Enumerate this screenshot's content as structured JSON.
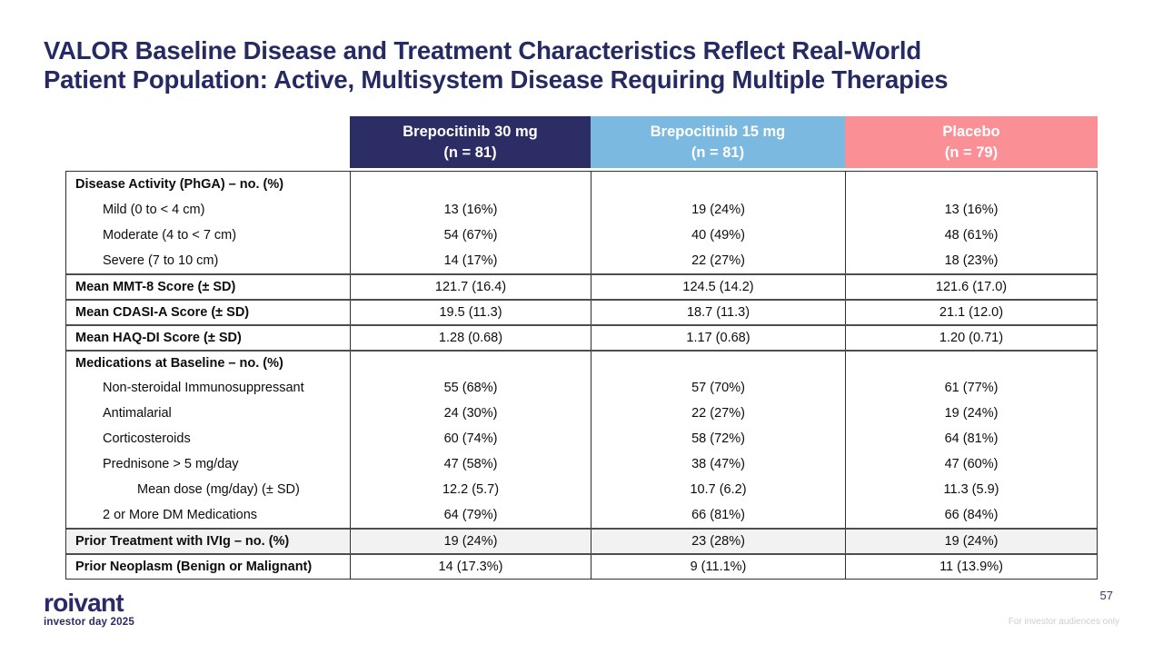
{
  "slide": {
    "title_line1": "VALOR Baseline Disease and Treatment Characteristics Reflect Real-World",
    "title_line2": "Patient Population: Active, Multisystem Disease Requiring Multiple Therapies",
    "title_color": "#252a63",
    "page_number": "57",
    "footer_note": "For investor audiences only",
    "logo": {
      "brand": "roivant",
      "tagline": "investor day 2025"
    }
  },
  "table": {
    "columns": [
      {
        "name_line1": "Brepocitinib 30 mg",
        "name_line2": "(n = 81)",
        "color": "#2d2d66"
      },
      {
        "name_line1": "Brepocitinib 15 mg",
        "name_line2": "(n = 81)",
        "color": "#7cb9e0"
      },
      {
        "name_line1": "Placebo",
        "name_line2": "(n = 79)",
        "color": "#fb8f96"
      }
    ],
    "rows": [
      {
        "label": "Disease Activity (PhGA) – no. (%)",
        "values": [
          "",
          "",
          ""
        ]
      },
      {
        "label": "Mild (0 to < 4 cm)",
        "values": [
          "13 (16%)",
          "19 (24%)",
          "13 (16%)"
        ]
      },
      {
        "label": "Moderate (4 to < 7 cm)",
        "values": [
          "54 (67%)",
          "40 (49%)",
          "48 (61%)"
        ]
      },
      {
        "label": "Severe (7 to 10 cm)",
        "values": [
          "14 (17%)",
          "22 (27%)",
          "18 (23%)"
        ]
      },
      {
        "label": "Mean MMT-8 Score (± SD)",
        "values": [
          "121.7 (16.4)",
          "124.5 (14.2)",
          "121.6 (17.0)"
        ]
      },
      {
        "label": "Mean CDASI-A Score (± SD)",
        "values": [
          "19.5 (11.3)",
          "18.7 (11.3)",
          "21.1 (12.0)"
        ]
      },
      {
        "label": "Mean HAQ-DI Score (± SD)",
        "values": [
          "1.28 (0.68)",
          "1.17 (0.68)",
          "1.20 (0.71)"
        ]
      },
      {
        "label": "Medications at Baseline – no. (%)",
        "values": [
          "",
          "",
          ""
        ]
      },
      {
        "label": "Non-steroidal Immunosuppressant",
        "values": [
          "55 (68%)",
          "57 (70%)",
          "61 (77%)"
        ]
      },
      {
        "label": "Antimalarial",
        "values": [
          "24 (30%)",
          "22 (27%)",
          "19 (24%)"
        ]
      },
      {
        "label": "Corticosteroids",
        "values": [
          "60 (74%)",
          "58 (72%)",
          "64 (81%)"
        ]
      },
      {
        "label": "Prednisone > 5 mg/day",
        "values": [
          "47 (58%)",
          "38 (47%)",
          "47 (60%)"
        ]
      },
      {
        "label": "Mean dose (mg/day) (± SD)",
        "values": [
          "12.2 (5.7)",
          "10.7 (6.2)",
          "11.3 (5.9)"
        ]
      },
      {
        "label": "2 or More DM Medications",
        "values": [
          "64 (79%)",
          "66 (81%)",
          "66 (84%)"
        ]
      },
      {
        "label": "Prior Treatment with IVIg – no. (%)",
        "values": [
          "19 (24%)",
          "23 (28%)",
          "19 (24%)"
        ]
      },
      {
        "label": "Prior Neoplasm (Benign or Malignant)",
        "values": [
          "14 (17.3%)",
          "9 (11.1%)",
          "11 (13.9%)"
        ]
      }
    ]
  }
}
